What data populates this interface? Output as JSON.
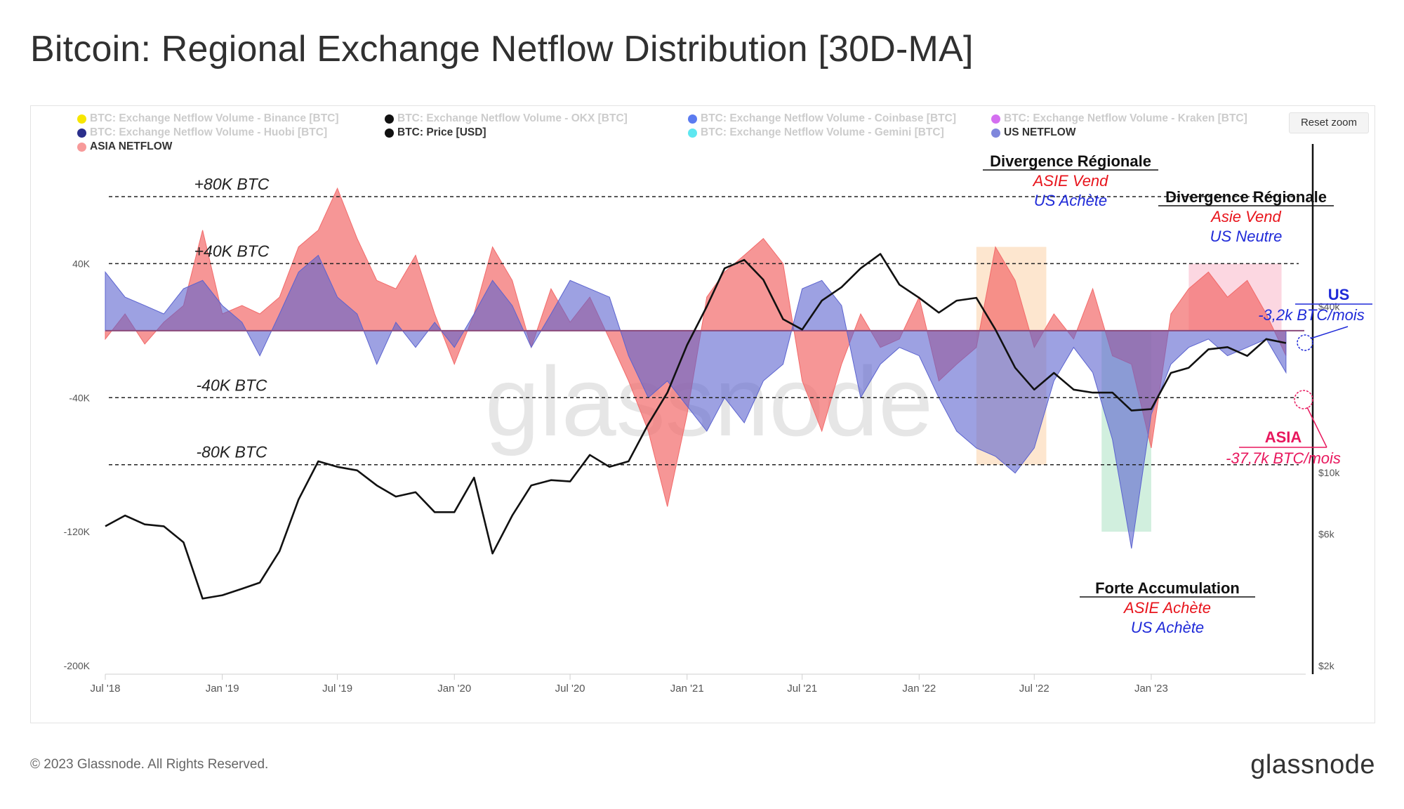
{
  "title": "Bitcoin: Regional Exchange Netflow Distribution [30D-MA]",
  "footer": {
    "copyright": "© 2023 Glassnode. All Rights Reserved.",
    "logo": "glassnode"
  },
  "watermark": "glassnode",
  "reset_zoom_label": "Reset zoom",
  "legend": [
    {
      "label": "BTC: Exchange Netflow Volume - Binance [BTC]",
      "color": "#f7e600",
      "visible": false
    },
    {
      "label": "BTC: Exchange Netflow Volume - OKX [BTC]",
      "color": "#111111",
      "visible": false
    },
    {
      "label": "BTC: Exchange Netflow Volume - Coinbase [BTC]",
      "color": "#5b7bf0",
      "visible": false
    },
    {
      "label": "BTC: Exchange Netflow Volume - Kraken [BTC]",
      "color": "#d46ff0",
      "visible": false
    },
    {
      "label": "BTC: Exchange Netflow Volume - Huobi [BTC]",
      "color": "#2b2f8c",
      "visible": false
    },
    {
      "label": "BTC: Price [USD]",
      "color": "#111111",
      "visible": true
    },
    {
      "label": "BTC: Exchange Netflow Volume - Gemini [BTC]",
      "color": "#5ee7f0",
      "visible": false
    },
    {
      "label": "US NETFLOW",
      "color": "#7f87dc",
      "visible": true
    },
    {
      "label": "ASIA NETFLOW",
      "color": "#f79a9a",
      "visible": true
    }
  ],
  "chart_data": {
    "type": "area",
    "x_axis": {
      "ticks": [
        "Jul '18",
        "Jan '19",
        "Jul '19",
        "Jan '20",
        "Jul '20",
        "Jan '21",
        "Jul '21",
        "Jan '22",
        "Jul '22",
        "Jan '23"
      ]
    },
    "y_axis_left": {
      "ticks": [
        "40K",
        "-40K",
        "-120K",
        "-200K"
      ],
      "range": [
        -200000,
        80000
      ]
    },
    "y_axis_right": {
      "scale": "log",
      "ticks": [
        "$40k",
        "$10k",
        "$6k",
        "$2k"
      ],
      "range": [
        2000,
        100000
      ]
    },
    "reference_lines": [
      {
        "value": 80000,
        "label": "+80K BTC"
      },
      {
        "value": 40000,
        "label": "+40K BTC"
      },
      {
        "value": -40000,
        "label": "-40K BTC"
      },
      {
        "value": -80000,
        "label": "-80K BTC"
      }
    ],
    "series": [
      {
        "name": "ASIA NETFLOW",
        "color": "#f26a6a",
        "points": [
          [
            "2018-07-01",
            -5000
          ],
          [
            "2018-08-01",
            10000
          ],
          [
            "2018-09-01",
            -8000
          ],
          [
            "2018-10-01",
            5000
          ],
          [
            "2018-11-01",
            15000
          ],
          [
            "2018-12-01",
            60000
          ],
          [
            "2019-01-01",
            10000
          ],
          [
            "2019-02-01",
            15000
          ],
          [
            "2019-03-01",
            10000
          ],
          [
            "2019-04-01",
            20000
          ],
          [
            "2019-05-01",
            50000
          ],
          [
            "2019-06-01",
            60000
          ],
          [
            "2019-07-01",
            85000
          ],
          [
            "2019-08-01",
            55000
          ],
          [
            "2019-09-01",
            30000
          ],
          [
            "2019-10-01",
            25000
          ],
          [
            "2019-11-01",
            45000
          ],
          [
            "2019-12-01",
            10000
          ],
          [
            "2020-01-01",
            -20000
          ],
          [
            "2020-02-01",
            10000
          ],
          [
            "2020-03-01",
            50000
          ],
          [
            "2020-04-01",
            30000
          ],
          [
            "2020-05-01",
            -10000
          ],
          [
            "2020-06-01",
            25000
          ],
          [
            "2020-07-01",
            5000
          ],
          [
            "2020-08-01",
            20000
          ],
          [
            "2020-09-01",
            -5000
          ],
          [
            "2020-10-01",
            -30000
          ],
          [
            "2020-11-01",
            -60000
          ],
          [
            "2020-12-01",
            -105000
          ],
          [
            "2021-01-01",
            -50000
          ],
          [
            "2021-02-01",
            20000
          ],
          [
            "2021-03-01",
            35000
          ],
          [
            "2021-04-01",
            45000
          ],
          [
            "2021-05-01",
            55000
          ],
          [
            "2021-06-01",
            40000
          ],
          [
            "2021-07-01",
            -30000
          ],
          [
            "2021-08-01",
            -60000
          ],
          [
            "2021-09-01",
            -20000
          ],
          [
            "2021-10-01",
            10000
          ],
          [
            "2021-11-01",
            -10000
          ],
          [
            "2021-12-01",
            -5000
          ],
          [
            "2022-01-01",
            20000
          ],
          [
            "2022-02-01",
            -30000
          ],
          [
            "2022-03-01",
            -20000
          ],
          [
            "2022-04-01",
            -10000
          ],
          [
            "2022-05-01",
            50000
          ],
          [
            "2022-06-01",
            30000
          ],
          [
            "2022-07-01",
            -10000
          ],
          [
            "2022-08-01",
            10000
          ],
          [
            "2022-09-01",
            -5000
          ],
          [
            "2022-10-01",
            25000
          ],
          [
            "2022-11-01",
            -15000
          ],
          [
            "2022-12-01",
            -20000
          ],
          [
            "2023-01-01",
            -70000
          ],
          [
            "2023-02-01",
            10000
          ],
          [
            "2023-03-01",
            25000
          ],
          [
            "2023-04-01",
            35000
          ],
          [
            "2023-05-01",
            20000
          ],
          [
            "2023-06-01",
            30000
          ],
          [
            "2023-07-01",
            10000
          ],
          [
            "2023-08-01",
            -15000
          ]
        ]
      },
      {
        "name": "US NETFLOW",
        "color": "#5b63cf",
        "points": [
          [
            "2018-07-01",
            35000
          ],
          [
            "2018-08-01",
            20000
          ],
          [
            "2018-09-01",
            15000
          ],
          [
            "2018-10-01",
            10000
          ],
          [
            "2018-11-01",
            25000
          ],
          [
            "2018-12-01",
            30000
          ],
          [
            "2019-01-01",
            15000
          ],
          [
            "2019-02-01",
            5000
          ],
          [
            "2019-03-01",
            -15000
          ],
          [
            "2019-04-01",
            10000
          ],
          [
            "2019-05-01",
            35000
          ],
          [
            "2019-06-01",
            45000
          ],
          [
            "2019-07-01",
            20000
          ],
          [
            "2019-08-01",
            10000
          ],
          [
            "2019-09-01",
            -20000
          ],
          [
            "2019-10-01",
            5000
          ],
          [
            "2019-11-01",
            -10000
          ],
          [
            "2019-12-01",
            5000
          ],
          [
            "2020-01-01",
            -10000
          ],
          [
            "2020-02-01",
            10000
          ],
          [
            "2020-03-01",
            30000
          ],
          [
            "2020-04-01",
            15000
          ],
          [
            "2020-05-01",
            -10000
          ],
          [
            "2020-06-01",
            10000
          ],
          [
            "2020-07-01",
            30000
          ],
          [
            "2020-08-01",
            25000
          ],
          [
            "2020-09-01",
            20000
          ],
          [
            "2020-10-01",
            -15000
          ],
          [
            "2020-11-01",
            -40000
          ],
          [
            "2020-12-01",
            -30000
          ],
          [
            "2021-01-01",
            -45000
          ],
          [
            "2021-02-01",
            -60000
          ],
          [
            "2021-03-01",
            -40000
          ],
          [
            "2021-04-01",
            -55000
          ],
          [
            "2021-05-01",
            -30000
          ],
          [
            "2021-06-01",
            -20000
          ],
          [
            "2021-07-01",
            25000
          ],
          [
            "2021-08-01",
            30000
          ],
          [
            "2021-09-01",
            15000
          ],
          [
            "2021-10-01",
            -40000
          ],
          [
            "2021-11-01",
            -20000
          ],
          [
            "2021-12-01",
            -10000
          ],
          [
            "2022-01-01",
            -15000
          ],
          [
            "2022-02-01",
            -40000
          ],
          [
            "2022-03-01",
            -60000
          ],
          [
            "2022-04-01",
            -70000
          ],
          [
            "2022-05-01",
            -75000
          ],
          [
            "2022-06-01",
            -85000
          ],
          [
            "2022-07-01",
            -70000
          ],
          [
            "2022-08-01",
            -30000
          ],
          [
            "2022-09-01",
            -10000
          ],
          [
            "2022-10-01",
            -25000
          ],
          [
            "2022-11-01",
            -65000
          ],
          [
            "2022-12-01",
            -130000
          ],
          [
            "2023-01-01",
            -50000
          ],
          [
            "2023-02-01",
            -20000
          ],
          [
            "2023-03-01",
            -10000
          ],
          [
            "2023-04-01",
            -5000
          ],
          [
            "2023-05-01",
            -15000
          ],
          [
            "2023-06-01",
            -10000
          ],
          [
            "2023-07-01",
            -5000
          ],
          [
            "2023-08-01",
            -25000
          ]
        ]
      },
      {
        "name": "BTC: Price [USD]",
        "color": "#111111",
        "axis": "right",
        "points": [
          [
            "2018-07-01",
            6400
          ],
          [
            "2018-08-01",
            7000
          ],
          [
            "2018-09-01",
            6500
          ],
          [
            "2018-10-01",
            6400
          ],
          [
            "2018-11-01",
            5600
          ],
          [
            "2018-12-01",
            3500
          ],
          [
            "2019-01-01",
            3600
          ],
          [
            "2019-02-01",
            3800
          ],
          [
            "2019-03-01",
            4000
          ],
          [
            "2019-04-01",
            5200
          ],
          [
            "2019-05-01",
            8000
          ],
          [
            "2019-06-01",
            11000
          ],
          [
            "2019-07-01",
            10500
          ],
          [
            "2019-08-01",
            10200
          ],
          [
            "2019-09-01",
            9000
          ],
          [
            "2019-10-01",
            8200
          ],
          [
            "2019-11-01",
            8500
          ],
          [
            "2019-12-01",
            7200
          ],
          [
            "2020-01-01",
            7200
          ],
          [
            "2020-02-01",
            9600
          ],
          [
            "2020-03-01",
            5100
          ],
          [
            "2020-04-01",
            7000
          ],
          [
            "2020-05-01",
            9000
          ],
          [
            "2020-06-01",
            9400
          ],
          [
            "2020-07-01",
            9300
          ],
          [
            "2020-08-01",
            11600
          ],
          [
            "2020-09-01",
            10500
          ],
          [
            "2020-10-01",
            11000
          ],
          [
            "2020-11-01",
            15000
          ],
          [
            "2020-12-01",
            19500
          ],
          [
            "2021-01-01",
            29000
          ],
          [
            "2021-02-01",
            40000
          ],
          [
            "2021-03-01",
            55000
          ],
          [
            "2021-04-01",
            59000
          ],
          [
            "2021-05-01",
            50000
          ],
          [
            "2021-06-01",
            36000
          ],
          [
            "2021-07-01",
            33000
          ],
          [
            "2021-08-01",
            42000
          ],
          [
            "2021-09-01",
            47000
          ],
          [
            "2021-10-01",
            55000
          ],
          [
            "2021-11-01",
            62000
          ],
          [
            "2021-12-01",
            48000
          ],
          [
            "2022-01-01",
            43000
          ],
          [
            "2022-02-01",
            38000
          ],
          [
            "2022-03-01",
            42000
          ],
          [
            "2022-04-01",
            43000
          ],
          [
            "2022-05-01",
            33000
          ],
          [
            "2022-06-01",
            24000
          ],
          [
            "2022-07-01",
            20000
          ],
          [
            "2022-08-01",
            23000
          ],
          [
            "2022-09-01",
            20000
          ],
          [
            "2022-10-01",
            19500
          ],
          [
            "2022-11-01",
            19500
          ],
          [
            "2022-12-01",
            16800
          ],
          [
            "2023-01-01",
            17000
          ],
          [
            "2023-02-01",
            23000
          ],
          [
            "2023-03-01",
            24000
          ],
          [
            "2023-04-01",
            28000
          ],
          [
            "2023-05-01",
            28500
          ],
          [
            "2023-06-01",
            26500
          ],
          [
            "2023-07-01",
            30500
          ],
          [
            "2023-08-01",
            29500
          ]
        ]
      }
    ],
    "highlights": [
      {
        "from": "2022-04-01",
        "to": "2022-07-20",
        "color": "#fde2c7",
        "y_from": -80000,
        "y_to": 50000
      },
      {
        "from": "2022-10-15",
        "to": "2023-01-01",
        "color": "#c9ecd8",
        "y_from": -120000,
        "y_to": 0
      },
      {
        "from": "2023-03-01",
        "to": "2023-07-25",
        "color": "#fbd0dc",
        "y_from": 0,
        "y_to": 40000
      }
    ],
    "annotations": [
      {
        "heading": "Divergence Régionale",
        "line1": "ASIE Vend",
        "line2": "US Achète"
      },
      {
        "heading": "Divergence Régionale",
        "line1": "Asie Vend",
        "line2": "US Neutre"
      },
      {
        "heading": "Forte Accumulation",
        "line1": "ASIE Achète",
        "line2": "US Achète"
      }
    ],
    "callouts": [
      {
        "label": "US",
        "value": "-3,2k BTC/mois",
        "color": "#1f2ad8"
      },
      {
        "label": "ASIA",
        "value": "-37,7k BTC/mois",
        "color": "#e8175d"
      }
    ]
  }
}
